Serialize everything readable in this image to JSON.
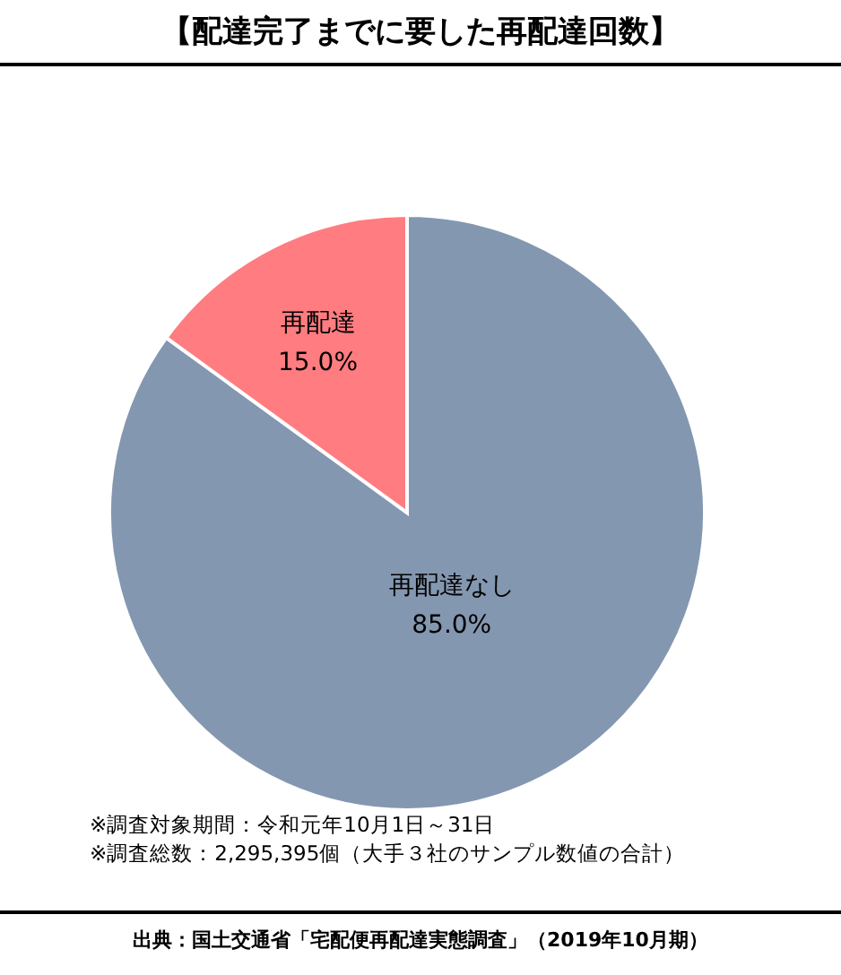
{
  "chart_data": {
    "type": "pie",
    "title": "【配達完了までに要した再配達回数】",
    "categories": [
      "再配達なし",
      "再配達"
    ],
    "values": [
      85.0,
      15.0
    ],
    "colors": [
      "#8497b0",
      "#ff7c80"
    ],
    "value_labels": [
      "85.0%",
      "15.0%"
    ],
    "legend": false,
    "annotations": [
      "※調査対象期間：令和元年10月1日～31日",
      "※調査総数：2,295,395個（大手３社のサンプル数値の合計）",
      "出典：国土交通省「宅配便再配達実態調査」（2019年10月期）"
    ]
  }
}
